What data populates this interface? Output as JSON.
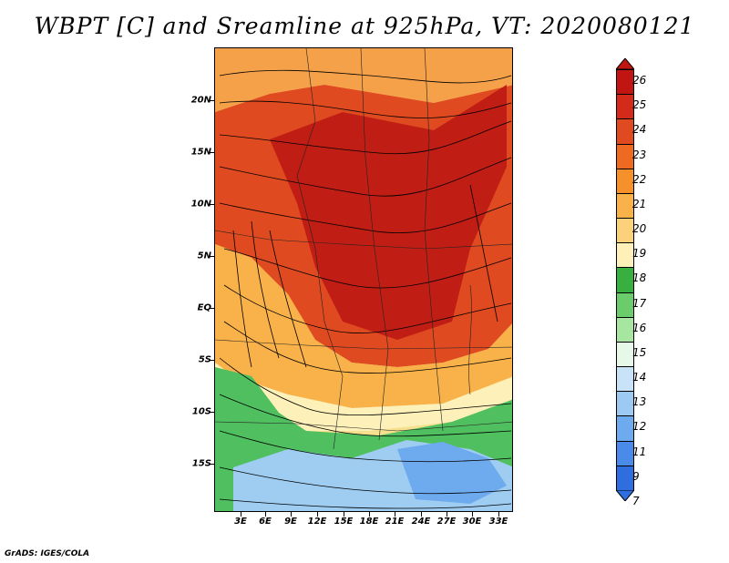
{
  "title": "WBPT [C] and Sreamline at 925hPa, VT: 2020080121",
  "credit": "GrADS: IGES/COLA",
  "map": {
    "lat_labels": [
      "20N",
      "15N",
      "10N",
      "5N",
      "EQ",
      "5S",
      "10S",
      "15S"
    ],
    "lon_labels": [
      "3E",
      "6E",
      "9E",
      "12E",
      "15E",
      "18E",
      "21E",
      "24E",
      "27E",
      "30E",
      "33E"
    ],
    "field": "wet-bulb potential temperature (C) at 925hPa with streamlines",
    "regions": [
      {
        "name": "north-sahel-orange",
        "color": "#f5a14a"
      },
      {
        "name": "central-red",
        "color": "#d93a1d"
      },
      {
        "name": "core-dark-red",
        "color": "#c01e14"
      },
      {
        "name": "southern-yellow",
        "color": "#f6e08e"
      },
      {
        "name": "southern-green",
        "color": "#4fbf5f"
      },
      {
        "name": "southern-blue",
        "color": "#9fcdf2"
      }
    ]
  },
  "colorbar": {
    "levels": [
      "26",
      "25",
      "24",
      "23",
      "22",
      "21",
      "20",
      "19",
      "18",
      "17",
      "16",
      "15",
      "14",
      "13",
      "12",
      "11",
      "9",
      "7"
    ],
    "colors": [
      "#c01510",
      "#d42a1a",
      "#e04a20",
      "#ee6a22",
      "#f5902a",
      "#f9b24a",
      "#fbd27a",
      "#fdf0b8",
      "#38b040",
      "#6acc6a",
      "#a6e6a0",
      "#e6f8e8",
      "#c8e2f8",
      "#9ccaf2",
      "#6eaaee",
      "#4a8ae8",
      "#2e6ede"
    ]
  }
}
